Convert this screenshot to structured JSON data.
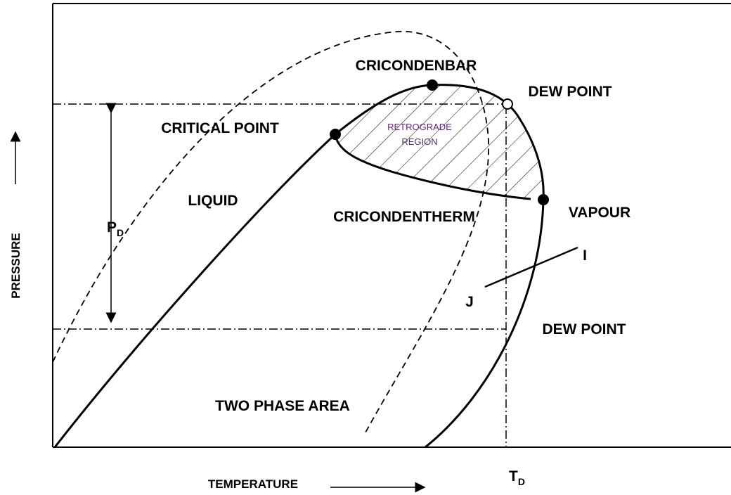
{
  "axes": {
    "y_label": "PRESSURE",
    "x_label": "TEMPERATURE"
  },
  "labels": {
    "cricondenbar": "CRICONDENBAR",
    "dew_point_top": "DEW POINT",
    "critical_point": "CRITICAL POINT",
    "retrograde_region": [
      "RETROGRADE",
      "REGION"
    ],
    "liquid": "LIQUID",
    "cricondentherm": "CRICONDENTHERM",
    "vapour": "VAPOUR",
    "pd": {
      "text": "P",
      "sub": "D"
    },
    "i": "I",
    "j": "J",
    "dew_point_bottom": "DEW POINT",
    "two_phase_area": "TWO PHASE AREA",
    "td": {
      "text": "T",
      "sub": "D"
    }
  }
}
